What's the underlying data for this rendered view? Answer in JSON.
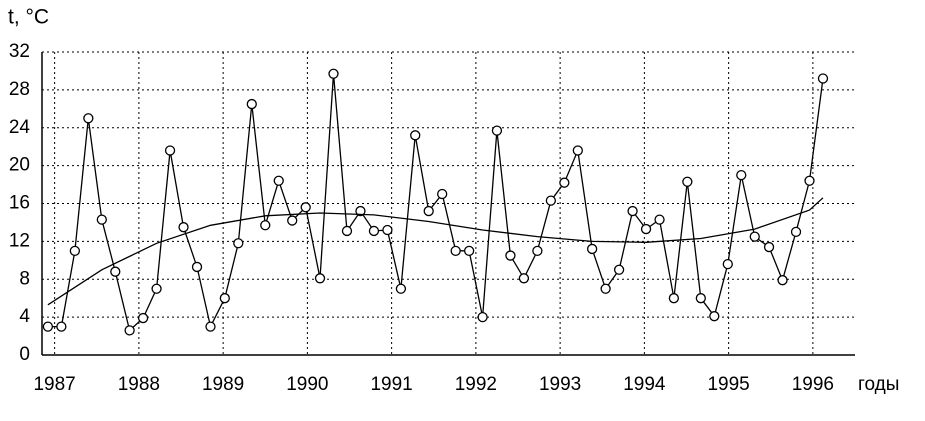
{
  "chart_data": {
    "type": "line",
    "y_label": "t, °C",
    "x_label": "годы",
    "xlim": [
      1986.85,
      1996.5
    ],
    "xticks": [
      1987,
      1988,
      1989,
      1990,
      1991,
      1992,
      1993,
      1994,
      1995,
      1996
    ],
    "ylim": [
      0,
      32
    ],
    "yticks": [
      0,
      4,
      8,
      12,
      16,
      20,
      24,
      28,
      32
    ],
    "grid": true,
    "series": [
      {
        "color": "#000000",
        "markers": true,
        "x": [
          1986.92,
          1987.08,
          1987.24,
          1987.4,
          1987.56,
          1987.72,
          1987.89,
          1988.05,
          1988.21,
          1988.37,
          1988.53,
          1988.69,
          1988.85,
          1989.02,
          1989.18,
          1989.34,
          1989.5,
          1989.66,
          1989.82,
          1989.98,
          1990.15,
          1990.31,
          1990.47,
          1990.63,
          1990.79,
          1990.95,
          1991.11,
          1991.28,
          1991.44,
          1991.6,
          1991.76,
          1991.92,
          1992.08,
          1992.25,
          1992.41,
          1992.57,
          1992.73,
          1992.89,
          1993.05,
          1993.21,
          1993.38,
          1993.54,
          1993.7,
          1993.86,
          1994.02,
          1994.18,
          1994.35,
          1994.51,
          1994.67,
          1994.83,
          1994.99,
          1995.15,
          1995.31,
          1995.48,
          1995.64,
          1995.8,
          1995.96,
          1996.12
        ],
        "values": [
          3,
          3,
          11,
          25,
          14.3,
          8.8,
          2.6,
          3.9,
          7,
          21.6,
          13.5,
          9.3,
          3,
          6,
          11.8,
          26.5,
          13.7,
          18.4,
          14.2,
          15.6,
          8.1,
          29.7,
          13.1,
          15.2,
          13.1,
          13.2,
          7,
          23.2,
          15.2,
          17,
          11,
          11,
          4,
          23.7,
          10.5,
          8.1,
          11,
          16.3,
          18.2,
          21.6,
          11.2,
          7,
          9,
          15.2,
          13.3,
          14.3,
          6,
          18.3,
          6,
          4.1,
          9.6,
          19,
          12.5,
          11.4,
          7.9,
          13,
          18.4,
          29.2
        ]
      },
      {
        "color": "#000000",
        "markers": false,
        "x": [
          1986.92,
          1987.56,
          1988.21,
          1988.85,
          1989.5,
          1990.15,
          1990.79,
          1991.44,
          1992.08,
          1992.73,
          1993.38,
          1994.02,
          1994.67,
          1995.31,
          1995.96,
          1996.12
        ],
        "values": [
          5.3,
          9.0,
          11.8,
          13.7,
          14.7,
          15.0,
          14.8,
          14.1,
          13.2,
          12.5,
          12.0,
          11.9,
          12.3,
          13.3,
          15.3,
          16.6
        ]
      }
    ]
  }
}
